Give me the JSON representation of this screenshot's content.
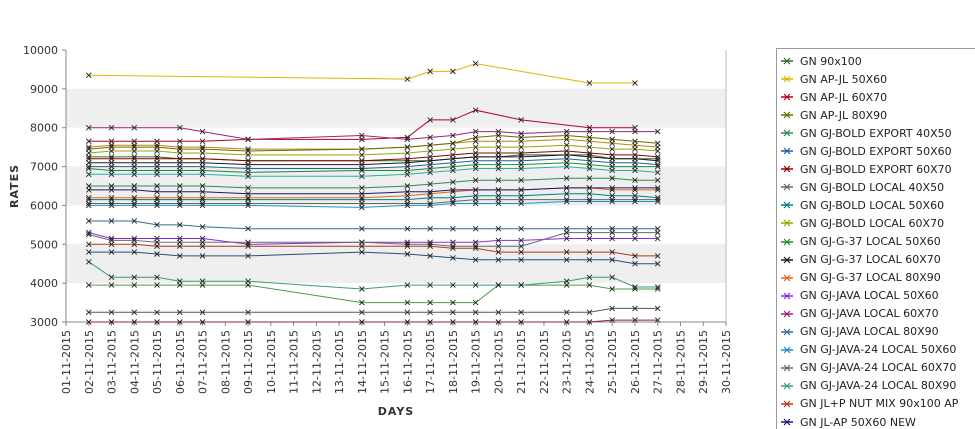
{
  "chart_data": {
    "type": "line",
    "xlabel": "DAYS",
    "ylabel": "RATES",
    "ylim": [
      3000,
      10000
    ],
    "yticks": [
      3000,
      4000,
      5000,
      6000,
      7000,
      8000,
      9000,
      10000
    ],
    "x": [
      "01-11-2015",
      "02-11-2015",
      "03-11-2015",
      "04-11-2015",
      "05-11-2015",
      "06-11-2015",
      "07-11-2015",
      "08-11-2015",
      "09-11-2015",
      "10-11-2015",
      "11-11-2015",
      "12-11-2015",
      "13-11-2015",
      "14-11-2015",
      "15-11-2015",
      "16-11-2015",
      "17-11-2015",
      "18-11-2015",
      "19-11-2015",
      "20-11-2015",
      "21-11-2015",
      "22-11-2015",
      "23-11-2015",
      "24-11-2015",
      "25-11-2015",
      "26-11-2015",
      "27-11-2015",
      "28-11-2015",
      "29-11-2015",
      "30-11-2015"
    ],
    "grid": "alternating horizontal bands",
    "legend_position": "right",
    "series": [
      {
        "name": "GN 90x100",
        "color": "#2d6b2d",
        "values": [
          null,
          7250,
          7250,
          7250,
          7250,
          7200,
          7200,
          null,
          7150,
          null,
          null,
          null,
          null,
          7150,
          null,
          7150,
          7150,
          7200,
          7250,
          7250,
          7300,
          null,
          7300,
          7300,
          7200,
          7200,
          7200,
          null,
          null,
          null
        ]
      },
      {
        "name": "GN AP-JL 50X60",
        "color": "#e0b400",
        "values": [
          null,
          9350,
          null,
          null,
          null,
          null,
          null,
          null,
          null,
          null,
          null,
          null,
          null,
          null,
          null,
          9250,
          9450,
          9450,
          9650,
          null,
          null,
          null,
          null,
          9150,
          null,
          9150,
          null,
          null,
          null,
          null
        ]
      },
      {
        "name": "GN AP-JL 60X70",
        "color": "#b00020",
        "values": [
          null,
          7650,
          7650,
          7650,
          7650,
          7650,
          7650,
          null,
          7700,
          null,
          null,
          null,
          null,
          7700,
          null,
          7750,
          8200,
          8200,
          8450,
          null,
          8200,
          null,
          null,
          8000,
          null,
          8000,
          null,
          null,
          null,
          null
        ]
      },
      {
        "name": "GN AP-JL 80X90",
        "color": "#6b6b00",
        "values": [
          null,
          7450,
          7500,
          7500,
          7500,
          7450,
          7450,
          null,
          7400,
          null,
          null,
          null,
          null,
          7450,
          null,
          7500,
          7550,
          7600,
          7750,
          7800,
          7750,
          null,
          7800,
          7750,
          7700,
          7650,
          7600,
          null,
          null,
          null
        ]
      },
      {
        "name": "GN GJ-BOLD EXPORT 40X50",
        "color": "#2e8b57",
        "values": [
          null,
          6500,
          6500,
          6500,
          6500,
          6500,
          6500,
          null,
          6450,
          null,
          null,
          null,
          null,
          6450,
          null,
          6500,
          6550,
          6600,
          6650,
          6650,
          6650,
          null,
          6700,
          6700,
          6700,
          6650,
          6650,
          null,
          null,
          null
        ]
      },
      {
        "name": "GN GJ-BOLD EXPORT 50X60",
        "color": "#1f5fa8",
        "values": [
          null,
          7000,
          7000,
          7000,
          7000,
          7000,
          7000,
          null,
          6950,
          null,
          null,
          null,
          null,
          6950,
          null,
          7000,
          7050,
          7100,
          7150,
          7150,
          7150,
          null,
          7200,
          7150,
          7100,
          7100,
          7050,
          null,
          null,
          null
        ]
      },
      {
        "name": "GN GJ-BOLD EXPORT 60X70",
        "color": "#8b0000",
        "values": [
          null,
          7200,
          7200,
          7200,
          7200,
          7200,
          7200,
          null,
          7150,
          null,
          null,
          null,
          null,
          7150,
          null,
          7200,
          7250,
          7300,
          7350,
          7350,
          7350,
          null,
          7400,
          7350,
          7300,
          7300,
          7250,
          null,
          null,
          null
        ]
      },
      {
        "name": "GN GJ-BOLD LOCAL 40X50",
        "color": "#666666",
        "values": [
          null,
          6050,
          6050,
          6050,
          6050,
          6050,
          6050,
          null,
          6050,
          null,
          null,
          null,
          null,
          6050,
          null,
          6050,
          6050,
          6100,
          6150,
          6150,
          6150,
          null,
          6150,
          6150,
          6150,
          6150,
          6150,
          null,
          null,
          null
        ]
      },
      {
        "name": "GN GJ-BOLD LOCAL 50X60",
        "color": "#008080",
        "values": [
          null,
          6150,
          6150,
          6150,
          6150,
          6150,
          6150,
          null,
          6150,
          null,
          null,
          null,
          null,
          6150,
          null,
          6150,
          6200,
          6200,
          6250,
          6250,
          6250,
          null,
          6300,
          6300,
          6250,
          6250,
          6200,
          null,
          null,
          null
        ]
      },
      {
        "name": "GN GJ-BOLD LOCAL 60X70",
        "color": "#9aa600",
        "values": [
          null,
          7350,
          7400,
          7400,
          7400,
          7350,
          7350,
          null,
          7300,
          null,
          null,
          null,
          null,
          7300,
          null,
          7350,
          7400,
          7450,
          7500,
          7500,
          7500,
          null,
          7550,
          7500,
          7450,
          7450,
          7400,
          null,
          null,
          null
        ]
      },
      {
        "name": "GN GJ-G-37 LOCAL 50X60",
        "color": "#228b22",
        "values": [
          null,
          6950,
          6900,
          6900,
          6900,
          6900,
          6900,
          null,
          6850,
          null,
          null,
          null,
          null,
          6900,
          null,
          6900,
          6950,
          7000,
          7050,
          7050,
          7050,
          null,
          7100,
          7050,
          7000,
          7000,
          7000,
          null,
          null,
          null
        ]
      },
      {
        "name": "GN GJ-G-37 LOCAL 60X70",
        "color": "#1a1a1a",
        "values": [
          null,
          7100,
          7100,
          7100,
          7100,
          7100,
          7100,
          null,
          7050,
          null,
          null,
          null,
          null,
          7050,
          null,
          7100,
          7150,
          7200,
          7250,
          7250,
          7250,
          null,
          7300,
          7250,
          7200,
          7200,
          7150,
          null,
          null,
          null
        ]
      },
      {
        "name": "GN GJ-G-37 LOCAL 80X90",
        "color": "#e8641a",
        "values": [
          null,
          6200,
          6200,
          6200,
          6200,
          6200,
          6200,
          null,
          6200,
          null,
          null,
          null,
          null,
          6200,
          null,
          6250,
          6300,
          6350,
          6400,
          6400,
          6400,
          null,
          6450,
          6450,
          6400,
          6400,
          6400,
          null,
          null,
          null
        ]
      },
      {
        "name": "GN GJ-JAVA LOCAL 50X60",
        "color": "#8a2be2",
        "values": [
          null,
          5300,
          5150,
          5150,
          5150,
          5150,
          5150,
          null,
          5000,
          null,
          null,
          null,
          null,
          5050,
          null,
          5050,
          5050,
          5050,
          5050,
          5100,
          5100,
          null,
          5150,
          5150,
          5150,
          5150,
          5150,
          null,
          null,
          null
        ]
      },
      {
        "name": "GN GJ-JAVA LOCAL 60X70",
        "color": "#a0207a",
        "values": [
          null,
          8000,
          8000,
          8000,
          null,
          8000,
          7900,
          null,
          7700,
          null,
          null,
          null,
          null,
          7800,
          null,
          7700,
          7750,
          7800,
          7900,
          7900,
          7850,
          null,
          7900,
          7900,
          7900,
          7900,
          7900,
          null,
          null,
          null
        ]
      },
      {
        "name": "GN GJ-JAVA LOCAL 80X90",
        "color": "#2f6f8f",
        "values": [
          null,
          5600,
          5600,
          5600,
          5500,
          5500,
          5450,
          null,
          5400,
          null,
          null,
          null,
          null,
          5400,
          null,
          5400,
          5400,
          5400,
          5400,
          5400,
          5400,
          null,
          5400,
          5400,
          5400,
          5400,
          5400,
          null,
          null,
          null
        ]
      },
      {
        "name": "GN GJ-JAVA-24 LOCAL 50X60",
        "color": "#1e90c8",
        "values": [
          null,
          6000,
          6000,
          6000,
          6000,
          6000,
          6000,
          null,
          6000,
          null,
          null,
          null,
          null,
          5950,
          null,
          6000,
          6000,
          6050,
          6050,
          6050,
          6050,
          null,
          6100,
          6100,
          6100,
          6100,
          6100,
          null,
          null,
          null
        ]
      },
      {
        "name": "GN GJ-JAVA-24 LOCAL 60X70",
        "color": "#6a6a6a",
        "values": [
          null,
          5250,
          5100,
          5100,
          5050,
          5050,
          5050,
          null,
          5050,
          null,
          null,
          null,
          null,
          5050,
          null,
          5000,
          5000,
          4950,
          4950,
          4950,
          4950,
          null,
          5300,
          5300,
          5300,
          5300,
          5300,
          null,
          null,
          null
        ]
      },
      {
        "name": "GN GJ-JAVA-24 LOCAL 80X90",
        "color": "#3aa06a",
        "values": [
          null,
          4550,
          4150,
          4150,
          4150,
          4050,
          4050,
          null,
          4050,
          null,
          null,
          null,
          null,
          3850,
          null,
          3950,
          3950,
          3950,
          3950,
          3950,
          3950,
          null,
          4050,
          4150,
          4150,
          3900,
          3900,
          null,
          null,
          null
        ]
      },
      {
        "name": "GN JL+P NUT MIX 90x100 AP",
        "color": "#b03a1a",
        "values": [
          null,
          5000,
          5000,
          5000,
          4950,
          4950,
          4950,
          null,
          4950,
          null,
          null,
          null,
          null,
          4950,
          null,
          4950,
          4950,
          4900,
          4900,
          4800,
          4800,
          null,
          4800,
          4800,
          4800,
          4700,
          4700,
          null,
          null,
          null
        ]
      },
      {
        "name": "GN JL-AP 50X60 NEW",
        "color": "#1a1a6b",
        "values": [
          null,
          6400,
          6400,
          6400,
          6350,
          6350,
          6350,
          null,
          6300,
          null,
          null,
          null,
          null,
          6300,
          null,
          6350,
          6350,
          6400,
          6400,
          6400,
          6400,
          null,
          6450,
          6450,
          6450,
          6450,
          6450,
          null,
          null,
          null
        ]
      }
    ],
    "extra_lines": [
      {
        "color": "#555555",
        "values": [
          null,
          3250,
          3250,
          3250,
          3250,
          3250,
          3250,
          null,
          3250,
          null,
          null,
          null,
          null,
          3250,
          null,
          3250,
          3250,
          3250,
          3250,
          3250,
          3250,
          null,
          3250,
          3250,
          3350,
          3350,
          3350,
          null,
          null,
          null
        ]
      },
      {
        "color": "#8b2252",
        "values": [
          null,
          3000,
          3000,
          3000,
          3000,
          3000,
          3000,
          null,
          3000,
          null,
          null,
          null,
          null,
          3000,
          null,
          3000,
          3000,
          3000,
          3000,
          3000,
          3000,
          null,
          3000,
          3000,
          3050,
          3050,
          3050,
          null,
          null,
          null
        ]
      },
      {
        "color": "#4c9a4c",
        "values": [
          null,
          3950,
          3950,
          3950,
          3950,
          3950,
          3950,
          null,
          3950,
          null,
          null,
          null,
          null,
          3500,
          null,
          3500,
          3500,
          3500,
          3500,
          3950,
          3950,
          null,
          3950,
          3950,
          3850,
          3850,
          3850,
          null,
          null,
          null
        ]
      },
      {
        "color": "#2b4f7a",
        "values": [
          null,
          4800,
          4800,
          4800,
          4750,
          4700,
          4700,
          null,
          4700,
          null,
          null,
          null,
          null,
          4800,
          null,
          4750,
          4700,
          4650,
          4600,
          4600,
          4600,
          null,
          4600,
          4600,
          4600,
          4500,
          4500,
          null,
          null,
          null
        ]
      },
      {
        "color": "#b8860b",
        "values": [
          null,
          7500,
          7550,
          7550,
          7550,
          7500,
          7500,
          null,
          7450,
          null,
          null,
          null,
          null,
          7450,
          null,
          7500,
          7550,
          7600,
          7650,
          7650,
          7650,
          null,
          7700,
          7650,
          7600,
          7550,
          7500,
          null,
          null,
          null
        ]
      },
      {
        "color": "#20b2aa",
        "values": [
          null,
          6800,
          6800,
          6800,
          6800,
          6800,
          6800,
          null,
          6750,
          null,
          null,
          null,
          null,
          6750,
          null,
          6800,
          6850,
          6900,
          6950,
          6950,
          6950,
          null,
          7000,
          6950,
          6900,
          6900,
          6850,
          null,
          null,
          null
        ]
      }
    ]
  }
}
